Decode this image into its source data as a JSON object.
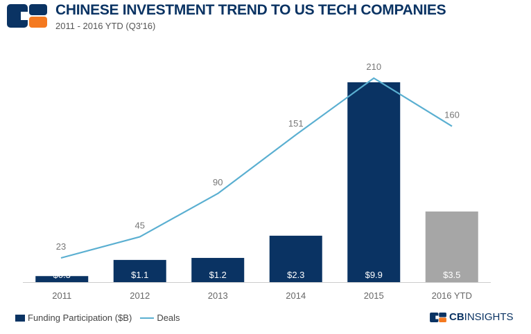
{
  "header": {
    "title": "CHINESE INVESTMENT TREND TO US TECH COMPANIES",
    "subtitle": "2011 - 2016 YTD (Q3'16)"
  },
  "brand": {
    "prefix": "CB",
    "name": "INSIGHTS",
    "logo_icon": "cb-insights-logo-icon",
    "colors": {
      "navy": "#0a3363",
      "orange": "#f47920"
    }
  },
  "legend": {
    "bar_label": "Funding Participation ($B)",
    "line_label": "Deals"
  },
  "colors": {
    "bar": "#0a3363",
    "bar_partial": "#a6a6a6",
    "line": "#5aafd1",
    "axis": "#cccccc",
    "tick_text": "#666666",
    "line_label_text": "#777777"
  },
  "chart_data": {
    "type": "bar",
    "title": "CHINESE INVESTMENT TREND TO US TECH COMPANIES",
    "subtitle": "2011 - 2016 YTD (Q3'16)",
    "categories": [
      "2011",
      "2012",
      "2013",
      "2014",
      "2015",
      "2016 YTD"
    ],
    "series": [
      {
        "name": "Funding Participation ($B)",
        "type": "bar",
        "values": [
          0.3,
          1.1,
          1.2,
          2.3,
          9.9,
          3.5
        ],
        "labels": [
          "$0.3",
          "$1.1",
          "$1.2",
          "$2.3",
          "$9.9",
          "$3.5"
        ]
      },
      {
        "name": "Deals",
        "type": "line",
        "values": [
          23,
          45,
          90,
          151,
          210,
          160
        ],
        "labels": [
          "23",
          "45",
          "90",
          "151",
          "210",
          "160"
        ]
      }
    ],
    "legend_position": "bottom-left",
    "grid": false
  }
}
